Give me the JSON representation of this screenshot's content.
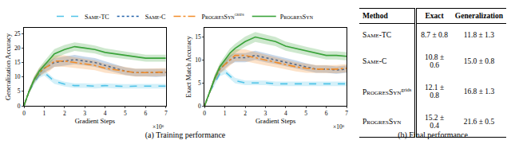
{
  "chart_data": [
    {
      "type": "line",
      "x_label": "Gradient Steps",
      "y_label": "Generalization Accuracy",
      "annotations": [
        "×10⁶"
      ],
      "xlim": [
        0,
        7
      ],
      "xticks": [
        0,
        1,
        2,
        3,
        4,
        5,
        6,
        7
      ],
      "ylim": [
        0,
        27
      ],
      "yticks": [
        0,
        5,
        10,
        15,
        20,
        25
      ],
      "grid": false,
      "legend": "top",
      "x": [
        0,
        0.25,
        0.5,
        0.75,
        1,
        1.25,
        1.5,
        2,
        2.5,
        3,
        3.5,
        4,
        4.5,
        5,
        5.5,
        6,
        6.5,
        7
      ],
      "series": [
        {
          "name": "Same-TC",
          "color": "#4fc3e8",
          "line_style": "dash",
          "values": [
            0,
            5,
            8,
            10.5,
            11.5,
            10,
            8.5,
            7.5,
            7,
            7,
            6.8,
            7,
            6.8,
            6.7,
            6.8,
            6.8,
            6.7,
            6.8
          ],
          "error": [
            0,
            0.6,
            0.8,
            0.9,
            1,
            1,
            0.9,
            0.8,
            0.8,
            0.8,
            0.8,
            0.8,
            0.8,
            0.8,
            0.8,
            0.8,
            0.8,
            0.8
          ]
        },
        {
          "name": "Same-C",
          "color": "#1f5fa8",
          "line_style": "dot",
          "values": [
            0,
            5,
            9,
            11.5,
            13,
            14,
            15,
            15.5,
            16,
            15.5,
            15,
            14,
            13,
            12,
            11.5,
            11.5,
            11.3,
            11.5
          ],
          "error": [
            0,
            0.8,
            1,
            1.2,
            1.4,
            1.5,
            1.5,
            1.6,
            1.6,
            1.5,
            1.5,
            1.4,
            1.4,
            1.3,
            1.3,
            1.3,
            1.3,
            1.3
          ]
        },
        {
          "name": "ProgresSyn",
          "name_sup": "grids",
          "color": "#f28c28",
          "line_style": "dashdot",
          "values": [
            0,
            5,
            9,
            11.5,
            13,
            14,
            15.5,
            15.5,
            15,
            14.5,
            14,
            13,
            12.5,
            12,
            11.5,
            11.5,
            11.5,
            11.7
          ],
          "error": [
            0,
            0.8,
            1.2,
            1.5,
            1.8,
            2,
            2,
            2,
            1.8,
            1.8,
            1.7,
            1.6,
            1.5,
            1.5,
            1.4,
            1.4,
            1.4,
            1.4
          ]
        },
        {
          "name": "ProgresSyn",
          "color": "#3aa33a",
          "line_style": "solid",
          "values": [
            0,
            5,
            9,
            12,
            14,
            16,
            18,
            19.5,
            20.5,
            20,
            19.5,
            18.5,
            18,
            17.5,
            17,
            16.5,
            16.5,
            16.5
          ],
          "error": [
            0,
            0.8,
            1,
            1.2,
            1.4,
            1.5,
            1.6,
            1.6,
            1.5,
            1.5,
            1.4,
            1.4,
            1.3,
            1.3,
            1.2,
            1.2,
            1.2,
            1.2
          ]
        }
      ]
    },
    {
      "type": "line",
      "x_label": "Gradient Steps",
      "y_label": "Exact Match Accuracy",
      "annotations": [
        "×10⁶"
      ],
      "xlim": [
        0,
        7
      ],
      "xticks": [
        0,
        1,
        2,
        3,
        4,
        5,
        6,
        7
      ],
      "ylim": [
        0,
        17
      ],
      "yticks": [
        0,
        5,
        10,
        15
      ],
      "grid": false,
      "x": [
        0,
        0.25,
        0.5,
        0.75,
        1,
        1.25,
        1.5,
        2,
        2.5,
        3,
        3.5,
        4,
        4.5,
        5,
        5.5,
        6,
        6.5,
        7
      ],
      "series": [
        {
          "name": "Same-TC",
          "color": "#4fc3e8",
          "line_style": "dash",
          "values": [
            0,
            3,
            5,
            7,
            7.5,
            6.5,
            5.5,
            5,
            5,
            5,
            4.8,
            4.8,
            4.7,
            4.8,
            4.8,
            4.7,
            4.8,
            4.8
          ],
          "error": [
            0,
            0.4,
            0.5,
            0.6,
            0.6,
            0.6,
            0.6,
            0.5,
            0.5,
            0.5,
            0.5,
            0.5,
            0.5,
            0.5,
            0.5,
            0.5,
            0.5,
            0.5
          ]
        },
        {
          "name": "Same-C",
          "color": "#1f5fa8",
          "line_style": "dot",
          "values": [
            0,
            3,
            6,
            8,
            9,
            10,
            10.5,
            10.5,
            11,
            10.5,
            10,
            9.5,
            9,
            8.5,
            8,
            8,
            7.8,
            8
          ],
          "error": [
            0,
            0.5,
            0.7,
            0.8,
            0.9,
            1,
            1,
            1,
            1,
            1,
            0.9,
            0.9,
            0.9,
            0.8,
            0.8,
            0.8,
            0.8,
            0.8
          ]
        },
        {
          "name": "ProgresSyn",
          "name_sup": "grids",
          "color": "#f28c28",
          "line_style": "dashdot",
          "values": [
            0,
            3,
            6,
            8,
            9,
            10,
            11,
            11,
            10.5,
            10,
            9.5,
            9,
            8.5,
            8.2,
            8,
            8,
            8,
            8.2
          ],
          "error": [
            0,
            0.5,
            0.8,
            1,
            1.2,
            1.3,
            1.3,
            1.3,
            1.2,
            1.2,
            1.1,
            1,
            1,
            1,
            0.9,
            0.9,
            0.9,
            0.9
          ]
        },
        {
          "name": "ProgresSyn",
          "color": "#3aa33a",
          "line_style": "solid",
          "values": [
            0,
            3,
            6,
            8.5,
            10,
            11.5,
            12.5,
            14,
            15,
            14.5,
            14,
            13,
            12.5,
            12,
            11.5,
            11,
            11,
            10.8
          ],
          "error": [
            0,
            0.5,
            0.7,
            0.8,
            0.9,
            1,
            1,
            1.1,
            1.1,
            1,
            1,
            1,
            0.9,
            0.9,
            0.9,
            0.9,
            0.9,
            0.9
          ]
        }
      ]
    }
  ],
  "table": {
    "header": [
      "Method",
      "Exact",
      "Generalization"
    ],
    "rows": [
      {
        "method": "Same-TC",
        "exact": "8.7 ± 0.8",
        "generalization": "11.8 ± 1.3"
      },
      {
        "method": "Same-C",
        "exact": "10.8 ± 0.6",
        "generalization": "15.0 ± 0.8"
      },
      {
        "method": "ProgresSyn",
        "sup": "grids",
        "exact": "12.1 ± 0.8",
        "generalization": "16.8 ± 1.3"
      },
      {
        "method": "ProgresSyn",
        "exact": "15.2 ± 0.4",
        "generalization": "21.6 ± 0.5"
      }
    ]
  },
  "captions": [
    "(a) Training performance",
    "(b) Final performance"
  ]
}
